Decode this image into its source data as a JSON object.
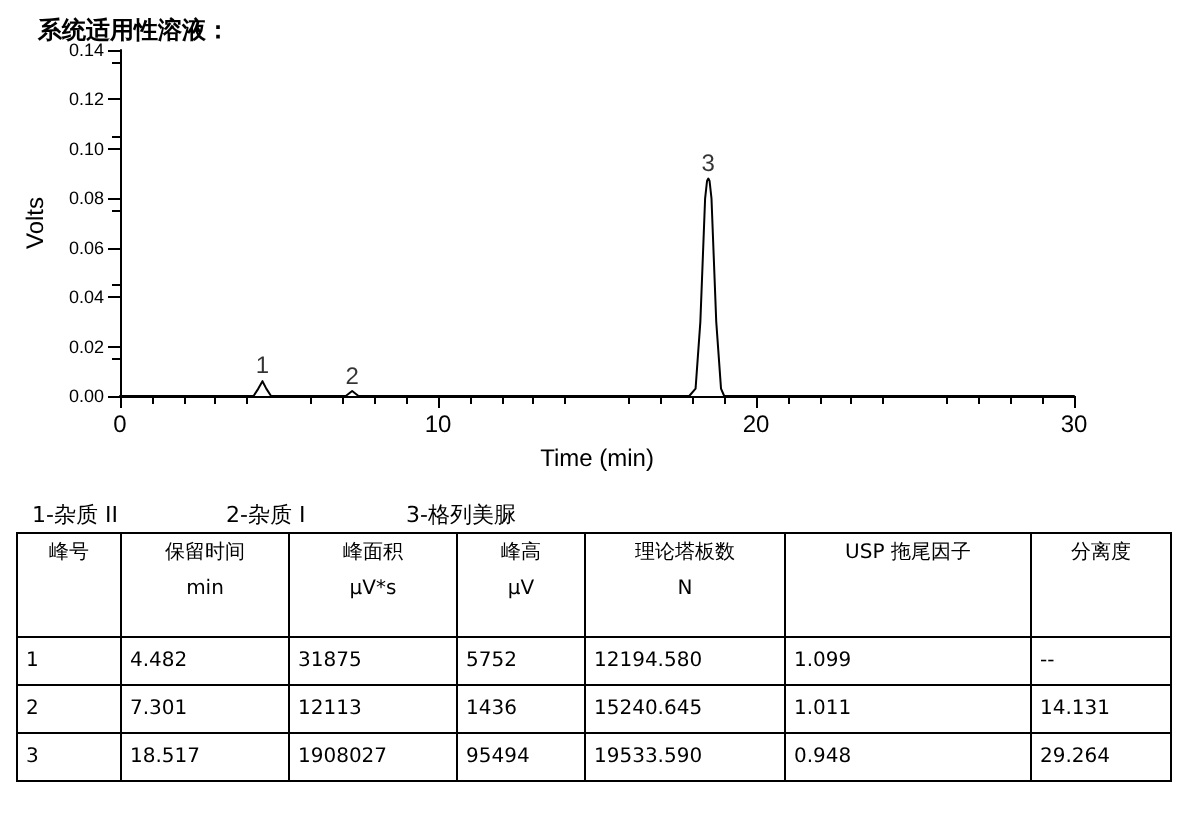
{
  "chart_data": {
    "type": "line",
    "title": "系统适用性溶液：",
    "xlabel": "Time (min)",
    "ylabel": "Volts",
    "x": [
      0,
      4.2,
      4.35,
      4.48,
      4.6,
      4.75,
      7.1,
      7.3,
      7.5,
      17.9,
      18.1,
      18.25,
      18.4,
      18.46,
      18.5,
      18.54,
      18.6,
      18.75,
      18.9,
      19.0,
      30
    ],
    "series": [
      {
        "color": "#000000",
        "values": [
          0,
          0,
          0.003,
          0.006,
          0.003,
          0,
          0,
          0.002,
          0,
          0,
          0.003,
          0.03,
          0.08,
          0.087,
          0.088,
          0.087,
          0.08,
          0.03,
          0.003,
          0,
          0
        ]
      }
    ],
    "xlim": [
      0,
      30
    ],
    "xticks": [
      0,
      10,
      20,
      30
    ],
    "ylim": [
      0,
      0.14
    ],
    "yticks": [
      {
        "value": 0,
        "label": "0.00"
      },
      {
        "value": 0.02,
        "label": "0.02"
      },
      {
        "value": 0.04,
        "label": "0.04"
      },
      {
        "value": 0.06,
        "label": "0.06"
      },
      {
        "value": 0.08,
        "label": "0.08"
      },
      {
        "value": 0.1,
        "label": "0.10"
      },
      {
        "value": 0.12,
        "label": "0.12"
      },
      {
        "value": 0.14,
        "label": "0.14"
      }
    ],
    "grid": false,
    "marker": "none",
    "line_style": "solid",
    "annotations": [
      {
        "text": "1",
        "x": 4.48,
        "y": 0.006
      },
      {
        "text": "2",
        "x": 7.3,
        "y": 0.0015
      },
      {
        "text": "3",
        "x": 18.5,
        "y": 0.088
      },
      "1-杂质 II",
      "2-杂质 I",
      "3-格列美脲",
      "峰号",
      "保留时间\nmin",
      "峰面积\nμV*s",
      "峰高\nμV",
      "理论塔板数\nN",
      "USP 拖尾因子",
      "分离度",
      "1",
      "4.482",
      "31875",
      "5752",
      "12194.580",
      "1.099",
      "--",
      "2",
      "7.301",
      "12113",
      "1436",
      "15240.645",
      "1.011",
      "14.131",
      "3",
      "18.517",
      "1908027",
      "95494",
      "19533.590",
      "0.948",
      "29.264"
    ]
  }
}
